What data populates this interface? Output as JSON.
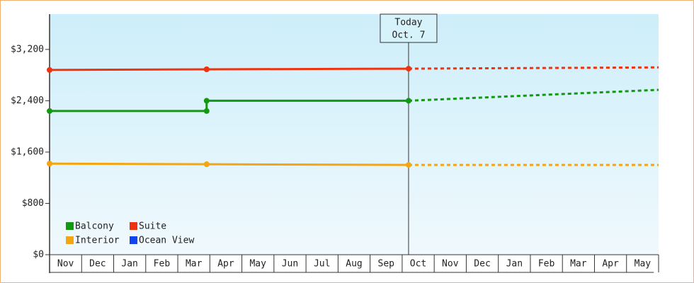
{
  "chart_data": {
    "type": "line",
    "categories": [
      "Nov",
      "Dec",
      "Jan",
      "Feb",
      "Mar",
      "Apr",
      "May",
      "Jun",
      "Jul",
      "Aug",
      "Sep",
      "Oct",
      "Nov",
      "Dec",
      "Jan",
      "Feb",
      "Mar",
      "Apr",
      "May"
    ],
    "x": [
      0,
      4.9,
      4.9,
      11.2,
      19
    ],
    "xlim": [
      0,
      19
    ],
    "ylim": [
      0,
      3750
    ],
    "yticks": [
      {
        "value": 0,
        "label": "$0"
      },
      {
        "value": 800,
        "label": "$800"
      },
      {
        "value": 1600,
        "label": "$1,600"
      },
      {
        "value": 2400,
        "label": "$2,400"
      },
      {
        "value": 3200,
        "label": "$3,200"
      }
    ],
    "today": {
      "label": "Today",
      "date": "Oct. 7",
      "x": 11.2
    },
    "series": [
      {
        "name": "Balcony",
        "color": "#119911",
        "values": [
          2240,
          2240,
          2400,
          2400,
          2570
        ]
      },
      {
        "name": "Suite",
        "color": "#ee3311",
        "values": [
          2880,
          2890,
          2890,
          2900,
          2920
        ]
      },
      {
        "name": "Interior",
        "color": "#f5a511",
        "values": [
          1420,
          1410,
          1410,
          1400,
          1400
        ]
      },
      {
        "name": "Ocean View",
        "color": "#1144ee",
        "values": [
          null,
          null,
          null,
          null,
          null
        ]
      }
    ]
  }
}
